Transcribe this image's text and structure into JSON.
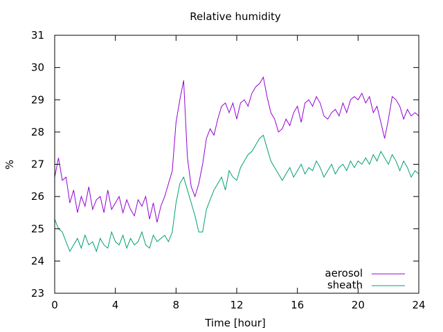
{
  "chart_data": {
    "type": "line",
    "title": "Relative humidity",
    "xlabel": "Time [hour]",
    "ylabel": "%",
    "xlim": [
      0,
      24
    ],
    "ylim": [
      23,
      31
    ],
    "xticks": [
      0,
      4,
      8,
      12,
      16,
      20,
      24
    ],
    "yticks": [
      23,
      24,
      25,
      26,
      27,
      28,
      29,
      30,
      31
    ],
    "grid": false,
    "legend_position": "bottom-right",
    "series": [
      {
        "name": "aerosol",
        "color": "#9400d3",
        "x": [
          0,
          0.25,
          0.5,
          0.75,
          1,
          1.25,
          1.5,
          1.75,
          2,
          2.25,
          2.5,
          2.75,
          3,
          3.25,
          3.5,
          3.75,
          4,
          4.25,
          4.5,
          4.75,
          5,
          5.25,
          5.5,
          5.75,
          6,
          6.25,
          6.5,
          6.75,
          7,
          7.25,
          7.5,
          7.75,
          8,
          8.25,
          8.5,
          8.75,
          9,
          9.25,
          9.5,
          9.75,
          10,
          10.25,
          10.5,
          10.75,
          11,
          11.25,
          11.5,
          11.75,
          12,
          12.25,
          12.5,
          12.75,
          13,
          13.25,
          13.5,
          13.75,
          14,
          14.25,
          14.5,
          14.75,
          15,
          15.25,
          15.5,
          15.75,
          16,
          16.25,
          16.5,
          16.75,
          17,
          17.25,
          17.5,
          17.75,
          18,
          18.25,
          18.5,
          18.75,
          19,
          19.25,
          19.5,
          19.75,
          20,
          20.25,
          20.5,
          20.75,
          21,
          21.25,
          21.5,
          21.75,
          22,
          22.25,
          22.5,
          22.75,
          23,
          23.25,
          23.5,
          23.75,
          24
        ],
        "values": [
          26.6,
          27.2,
          26.5,
          26.6,
          25.8,
          26.2,
          25.5,
          26.0,
          25.7,
          26.3,
          25.6,
          25.9,
          26.0,
          25.5,
          26.2,
          25.6,
          25.8,
          26.0,
          25.5,
          25.9,
          25.6,
          25.4,
          25.9,
          25.7,
          26.0,
          25.3,
          25.8,
          25.2,
          25.7,
          26.0,
          26.4,
          26.8,
          28.3,
          29.0,
          29.6,
          27.2,
          26.3,
          26.0,
          26.4,
          27.0,
          27.8,
          28.1,
          27.9,
          28.4,
          28.8,
          28.9,
          28.6,
          28.9,
          28.4,
          28.9,
          29.0,
          28.8,
          29.2,
          29.4,
          29.5,
          29.7,
          29.1,
          28.6,
          28.4,
          28.0,
          28.1,
          28.4,
          28.2,
          28.6,
          28.8,
          28.3,
          28.9,
          29.0,
          28.8,
          29.1,
          28.9,
          28.5,
          28.4,
          28.6,
          28.7,
          28.5,
          28.9,
          28.6,
          29.0,
          29.1,
          29.0,
          29.2,
          28.9,
          29.1,
          28.6,
          28.8,
          28.3,
          27.8,
          28.4,
          29.1,
          29.0,
          28.8,
          28.4,
          28.7,
          28.5,
          28.6,
          28.5
        ]
      },
      {
        "name": "sheath",
        "color": "#009e73",
        "x": [
          0,
          0.25,
          0.5,
          0.75,
          1,
          1.25,
          1.5,
          1.75,
          2,
          2.25,
          2.5,
          2.75,
          3,
          3.25,
          3.5,
          3.75,
          4,
          4.25,
          4.5,
          4.75,
          5,
          5.25,
          5.5,
          5.75,
          6,
          6.25,
          6.5,
          6.75,
          7,
          7.25,
          7.5,
          7.75,
          8,
          8.25,
          8.5,
          8.75,
          9,
          9.25,
          9.5,
          9.75,
          10,
          10.25,
          10.5,
          10.75,
          11,
          11.25,
          11.5,
          11.75,
          12,
          12.25,
          12.5,
          12.75,
          13,
          13.25,
          13.5,
          13.75,
          14,
          14.25,
          14.5,
          14.75,
          15,
          15.25,
          15.5,
          15.75,
          16,
          16.25,
          16.5,
          16.75,
          17,
          17.25,
          17.5,
          17.75,
          18,
          18.25,
          18.5,
          18.75,
          19,
          19.25,
          19.5,
          19.75,
          20,
          20.25,
          20.5,
          20.75,
          21,
          21.25,
          21.5,
          21.75,
          22,
          22.25,
          22.5,
          22.75,
          23,
          23.25,
          23.5,
          23.75,
          24
        ],
        "values": [
          25.3,
          25.0,
          24.9,
          24.6,
          24.3,
          24.5,
          24.7,
          24.4,
          24.8,
          24.5,
          24.6,
          24.3,
          24.7,
          24.5,
          24.4,
          24.9,
          24.6,
          24.5,
          24.8,
          24.4,
          24.7,
          24.5,
          24.6,
          24.9,
          24.5,
          24.4,
          24.8,
          24.6,
          24.7,
          24.8,
          24.6,
          24.9,
          25.8,
          26.4,
          26.6,
          26.2,
          25.8,
          25.4,
          24.9,
          24.9,
          25.6,
          25.9,
          26.2,
          26.4,
          26.6,
          26.2,
          26.8,
          26.6,
          26.5,
          26.9,
          27.1,
          27.3,
          27.4,
          27.6,
          27.8,
          27.9,
          27.5,
          27.1,
          26.9,
          26.7,
          26.5,
          26.7,
          26.9,
          26.6,
          26.8,
          27.0,
          26.7,
          26.9,
          26.8,
          27.1,
          26.9,
          26.6,
          26.8,
          27.0,
          26.7,
          26.9,
          27.0,
          26.8,
          27.1,
          26.9,
          27.1,
          27.0,
          27.2,
          27.0,
          27.3,
          27.1,
          27.4,
          27.2,
          27.0,
          27.3,
          27.1,
          26.8,
          27.1,
          26.9,
          26.6,
          26.8,
          26.7
        ]
      }
    ]
  }
}
